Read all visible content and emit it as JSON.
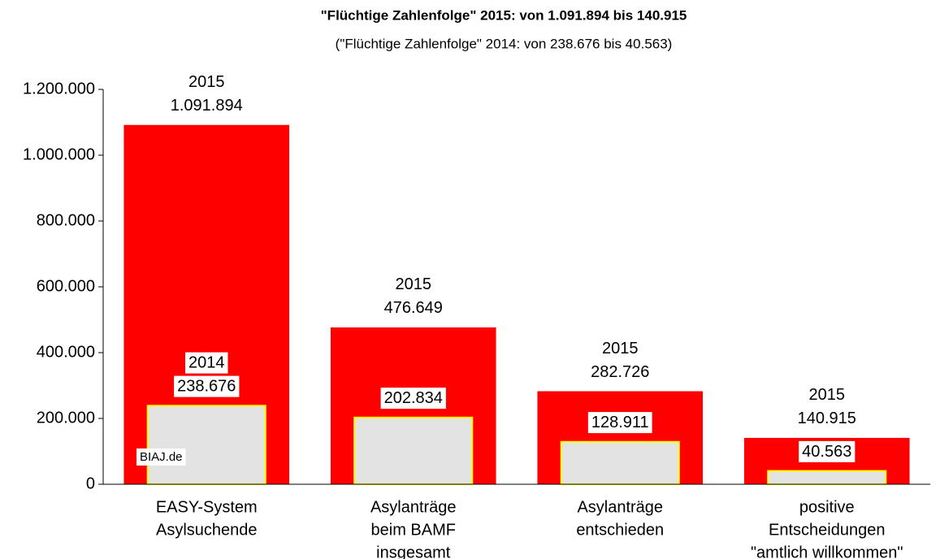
{
  "chart_data": {
    "type": "bar",
    "title": "\"Flüchtige Zahlenfolge\"  2015: von 1.091.894 bis 140.915",
    "subtitle": "(\"Flüchtige Zahlenfolge\" 2014: von 238.676 bis 40.563)",
    "annotation": "BIAJ.de",
    "categories": [
      [
        "EASY-System",
        "Asylsuchende"
      ],
      [
        "Asylanträge",
        "beim BAMF",
        "insgesamt"
      ],
      [
        "Asylanträge",
        "entschieden"
      ],
      [
        "positive",
        "Entscheidungen",
        "\"amtlich willkommen\""
      ]
    ],
    "series": [
      {
        "name": "2015",
        "color": "#ff0000",
        "values": [
          1091894,
          476649,
          282726,
          140915
        ],
        "value_labels": [
          "1.091.894",
          "476.649",
          "282.726",
          "140.915"
        ]
      },
      {
        "name": "2014",
        "color": "#e3e3e3",
        "border": "#ffff00",
        "values": [
          238676,
          202834,
          128911,
          40563
        ],
        "value_labels": [
          "238.676",
          "202.834",
          "128.911",
          "40.563"
        ]
      }
    ],
    "ylim": [
      0,
      1200000
    ],
    "yticks": [
      0,
      {
        "value": 200000,
        "label": "200.000"
      },
      {
        "value": 400000,
        "label": "400.000"
      },
      {
        "value": 600000,
        "label": "600.000"
      },
      {
        "value": 800000,
        "label": "800.000"
      },
      {
        "value": 1000000,
        "label": "1.000.000"
      },
      {
        "value": 1200000,
        "label": "1.200.000"
      }
    ],
    "grid": false
  }
}
